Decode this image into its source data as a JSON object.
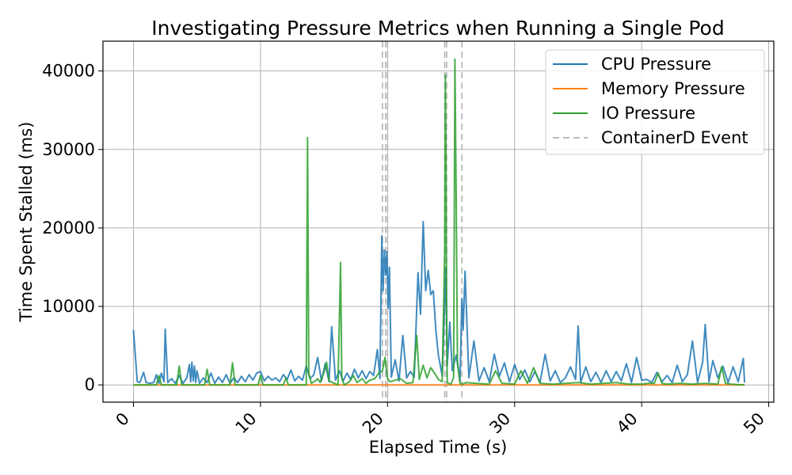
{
  "chart_data": {
    "type": "line",
    "title": "Investigating Pressure Metrics when Running a Single Pod",
    "xlabel": "Elapsed Time (s)",
    "ylabel": "Time Spent Stalled (ms)",
    "xlim": [
      -2.4,
      50.4
    ],
    "ylim": [
      -2200,
      43800
    ],
    "x_ticks": [
      0,
      10,
      20,
      30,
      40,
      50
    ],
    "y_ticks": [
      0,
      10000,
      20000,
      30000,
      40000
    ],
    "x_tick_labels": [
      "0",
      "10",
      "20",
      "30",
      "40",
      "50"
    ],
    "y_tick_labels": [
      "0",
      "10000",
      "20000",
      "30000",
      "40000"
    ],
    "grid": true,
    "legend_position": "top-right",
    "series": [
      {
        "name": "CPU Pressure",
        "color": "#1f77b4",
        "x": [
          0.0,
          0.3,
          0.5,
          0.8,
          1.0,
          1.3,
          1.6,
          1.8,
          2.0,
          2.2,
          2.4,
          2.5,
          2.7,
          3.0,
          3.3,
          3.6,
          3.9,
          4.2,
          4.4,
          4.5,
          4.6,
          4.7,
          4.8,
          4.9,
          5.0,
          5.2,
          5.5,
          5.8,
          6.1,
          6.4,
          6.7,
          7.0,
          7.3,
          7.6,
          7.9,
          8.2,
          8.5,
          8.8,
          9.1,
          9.4,
          9.7,
          10.0,
          10.3,
          10.6,
          10.9,
          11.2,
          11.5,
          11.8,
          12.1,
          12.4,
          12.7,
          13.0,
          13.3,
          13.6,
          13.9,
          14.2,
          14.5,
          14.8,
          15.1,
          15.4,
          15.6,
          15.9,
          16.2,
          16.5,
          16.8,
          17.1,
          17.4,
          17.7,
          18.0,
          18.3,
          18.6,
          18.9,
          19.2,
          19.4,
          19.55,
          19.65,
          19.75,
          19.85,
          19.95,
          20.05,
          20.15,
          20.3,
          20.6,
          20.9,
          21.2,
          21.5,
          21.8,
          22.1,
          22.4,
          22.6,
          22.8,
          23.0,
          23.2,
          23.4,
          23.6,
          23.8,
          24.0,
          24.3,
          24.6,
          24.7,
          24.9,
          25.1,
          25.4,
          25.7,
          25.85,
          25.95,
          26.1,
          26.4,
          26.8,
          27.2,
          27.6,
          28.0,
          28.4,
          28.8,
          29.2,
          29.6,
          30.0,
          30.4,
          30.8,
          31.2,
          31.6,
          32.0,
          32.4,
          32.8,
          33.2,
          33.6,
          34.0,
          34.4,
          34.8,
          35.0,
          35.2,
          35.6,
          36.0,
          36.4,
          36.8,
          37.2,
          37.6,
          38.0,
          38.4,
          38.8,
          39.2,
          39.6,
          40.0,
          40.4,
          40.8,
          41.2,
          41.6,
          42.0,
          42.4,
          42.8,
          43.2,
          43.6,
          44.0,
          44.4,
          44.8,
          45.0,
          45.3,
          45.6,
          46.0,
          46.4,
          46.8,
          47.2,
          47.6,
          48.0,
          48.1
        ],
        "values": [
          7000,
          400,
          300,
          1600,
          300,
          200,
          300,
          1300,
          200,
          1500,
          400,
          7100,
          300,
          800,
          200,
          1200,
          200,
          900,
          2600,
          400,
          2900,
          500,
          2400,
          300,
          1800,
          200,
          900,
          300,
          1500,
          200,
          1000,
          300,
          1300,
          200,
          900,
          300,
          1100,
          400,
          1300,
          600,
          1500,
          1700,
          500,
          1100,
          600,
          900,
          400,
          1300,
          700,
          1900,
          500,
          1100,
          600,
          2400,
          800,
          1300,
          3500,
          500,
          2700,
          400,
          7400,
          600,
          1800,
          500,
          1500,
          700,
          2000,
          900,
          1800,
          800,
          1700,
          1200,
          4500,
          800,
          19000,
          12000,
          17200,
          14000,
          17000,
          9800,
          15000,
          1000,
          3200,
          500,
          6300,
          900,
          1700,
          1000,
          14300,
          9000,
          20800,
          12000,
          14600,
          11500,
          12000,
          7000,
          3800,
          1200,
          15000,
          2500,
          8000,
          1800,
          3800,
          500,
          11000,
          7000,
          14500,
          900,
          5600,
          500,
          2200,
          400,
          3900,
          1100,
          2800,
          400,
          2600,
          700,
          1900,
          400,
          1700,
          300,
          3900,
          500,
          1800,
          300,
          900,
          2300,
          700,
          7500,
          300,
          2300,
          400,
          1600,
          300,
          1800,
          400,
          1700,
          500,
          2700,
          300,
          3500,
          600,
          700,
          300,
          1600,
          400,
          1200,
          300,
          2500,
          400,
          1300,
          5600,
          300,
          2900,
          7700,
          400,
          3100,
          900,
          2400,
          300,
          2300,
          400,
          3400,
          300
        ],
        "data_name": "cpu-pressure-line"
      },
      {
        "name": "Memory Pressure",
        "color": "#ff7f0e",
        "x": [
          0.0,
          48.1
        ],
        "values": [
          0,
          0
        ],
        "data_name": "memory-pressure-line"
      },
      {
        "name": "IO Pressure",
        "color": "#2ca02c",
        "x": [
          0.0,
          1.8,
          2.0,
          2.2,
          3.4,
          3.6,
          3.8,
          5.6,
          5.8,
          6.0,
          7.6,
          7.8,
          8.0,
          9.8,
          10.0,
          10.2,
          11.8,
          12.0,
          12.2,
          13.6,
          13.7,
          13.8,
          14.0,
          14.3,
          14.5,
          14.7,
          15.0,
          15.2,
          15.4,
          16.1,
          16.3,
          16.4,
          16.6,
          17.0,
          17.3,
          17.6,
          18.0,
          18.3,
          18.6,
          19.0,
          19.3,
          19.6,
          19.8,
          20.0,
          20.2,
          21.0,
          21.5,
          22.0,
          22.3,
          22.5,
          22.8,
          23.1,
          23.4,
          23.7,
          24.0,
          24.3,
          24.5,
          24.55,
          24.6,
          24.65,
          24.7,
          24.8,
          25.0,
          25.2,
          25.3,
          25.4,
          25.5,
          25.7,
          25.9,
          26.2,
          27.0,
          28.0,
          28.5,
          29.0,
          30.0,
          30.5,
          31.0,
          31.5,
          32.0,
          33.0,
          34.0,
          35.0,
          36.0,
          37.0,
          38.0,
          39.0,
          40.0,
          40.5,
          41.0,
          41.3,
          41.6,
          42.0,
          43.0,
          44.0,
          45.0,
          46.0,
          46.3,
          46.6,
          47.0,
          48.1
        ],
        "values": [
          0,
          0,
          1200,
          0,
          0,
          2400,
          0,
          0,
          2000,
          0,
          0,
          2800,
          0,
          0,
          1200,
          0,
          0,
          900,
          0,
          0,
          31500,
          1500,
          200,
          500,
          800,
          300,
          1600,
          2900,
          500,
          0,
          15600,
          800,
          0,
          400,
          1200,
          300,
          800,
          200,
          600,
          800,
          1500,
          1800,
          3500,
          800,
          400,
          800,
          200,
          300,
          6300,
          700,
          2500,
          900,
          2200,
          1500,
          700,
          400,
          17000,
          39500,
          30000,
          9000,
          300,
          200,
          100,
          1000,
          41500,
          24000,
          3000,
          200,
          100,
          300,
          200,
          100,
          1800,
          200,
          100,
          1800,
          200,
          2200,
          200,
          100,
          200,
          300,
          100,
          200,
          300,
          100,
          100,
          200,
          200,
          1500,
          200,
          100,
          200,
          100,
          200,
          100,
          2300,
          200,
          100,
          0
        ],
        "data_name": "io-pressure-line"
      }
    ],
    "events": {
      "name": "ContainerD Event",
      "color": "#bbbbbb",
      "x": [
        19.6,
        19.85,
        20.0,
        24.5,
        24.65,
        25.85
      ]
    }
  }
}
